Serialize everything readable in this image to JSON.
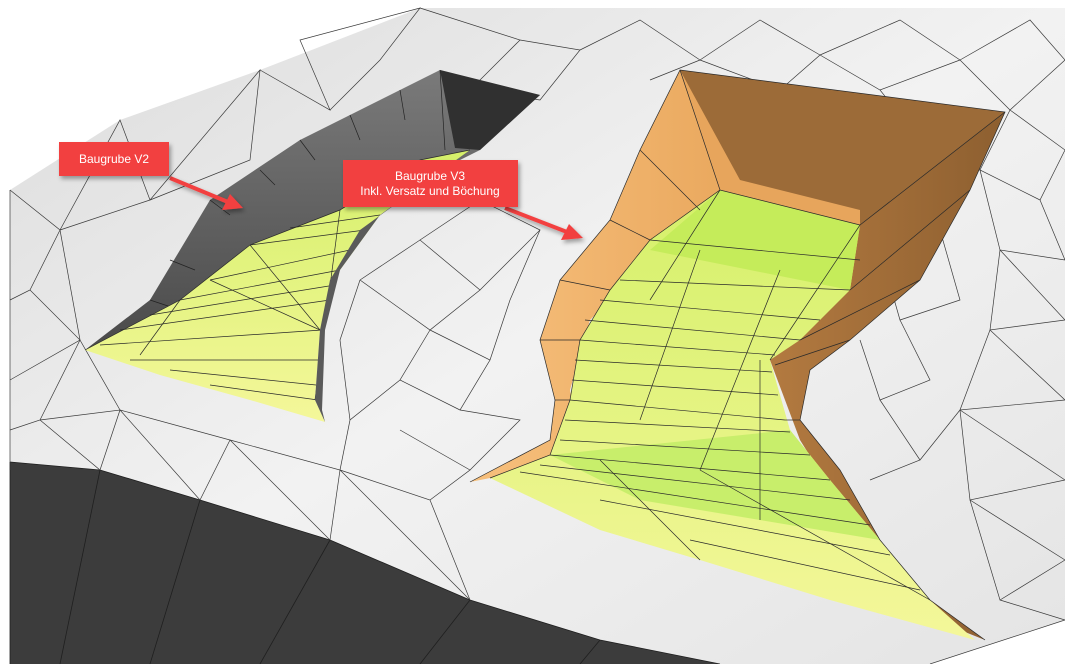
{
  "callouts": {
    "v2": {
      "line1": "Baugrube V2"
    },
    "v3": {
      "line1": "Baugrube V3",
      "line2": "Inkl. Versatz und Böchung"
    }
  },
  "colors": {
    "background": "#ffffff",
    "terrain": "#ececec",
    "terrain_lines": "#3a3a3a",
    "terrain_edge": "#3b3b3b",
    "pit_wall_v2": "#5c5c5c",
    "pit_floor": "#e8f27a",
    "pit_floor_deep": "#c7ee5a",
    "pit_slope_v3": "#f2b46a",
    "pit_slope_v3_dark": "#a9743e",
    "callout_fill": "#f24141",
    "callout_text": "#ffffff"
  }
}
